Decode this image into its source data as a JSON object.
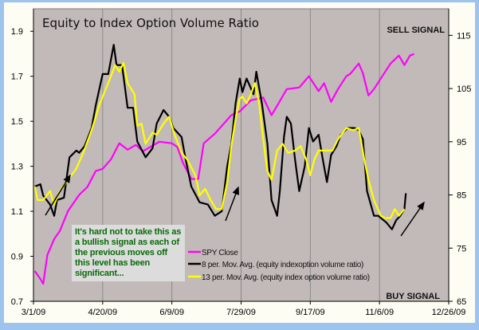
{
  "chart_data": {
    "type": "line",
    "title": "Equity to Index Option Volume Ratio",
    "x_unit": "days since 3/1/09",
    "x_tick_labels": [
      "3/1/09",
      "4/20/09",
      "6/9/09",
      "7/29/09",
      "9/17/09",
      "11/6/09",
      "12/26/09"
    ],
    "x_ticks": [
      0,
      50,
      100,
      150,
      200,
      250,
      300
    ],
    "xlim": [
      0,
      300
    ],
    "y_left": {
      "ylim": [
        0.7,
        2.0
      ],
      "ticks": [
        0.7,
        0.9,
        1.1,
        1.3,
        1.5,
        1.7,
        1.9
      ],
      "tick_labels": [
        "0.7",
        "0.9",
        "1.1",
        "1.3",
        "1.5",
        "1.7",
        "1.9"
      ]
    },
    "y_right": {
      "ylim": [
        65,
        120
      ],
      "ticks": [
        65,
        75,
        85,
        95,
        105,
        115
      ],
      "tick_labels": [
        "65",
        "75",
        "85",
        "95",
        "105",
        "115"
      ]
    },
    "annotations": {
      "sell": "SELL SIGNAL",
      "buy": "BUY SIGNAL",
      "note": "It's hard not to take this as a bullish signal as each of the previous moves off this level has been significant..."
    },
    "legend_position": "bottom-center",
    "series": [
      {
        "name": "SPY Close",
        "axis": "right",
        "color": "#ff00ff",
        "x": [
          1,
          5,
          7,
          10,
          15,
          19,
          25,
          33,
          39,
          45,
          50,
          56,
          62,
          68,
          74,
          79,
          91,
          100,
          104,
          108,
          114,
          119,
          123,
          131,
          143,
          149,
          157,
          166,
          172,
          177,
          183,
          192,
          199,
          206,
          210,
          215,
          220,
          226,
          229,
          235,
          238,
          242,
          246,
          252,
          258,
          264,
          268,
          272,
          275
        ],
        "y": [
          70.7,
          69.2,
          68.3,
          73.7,
          76.7,
          78.2,
          82.0,
          85.0,
          86.5,
          89.5,
          89.9,
          91.7,
          94.7,
          93.5,
          94.4,
          93.2,
          95.0,
          94.7,
          94.0,
          91.0,
          88.0,
          88.0,
          94.7,
          96.5,
          100.0,
          100.7,
          102.8,
          103.3,
          100.0,
          102.2,
          104.9,
          105.2,
          107.3,
          104.5,
          106.0,
          102.5,
          104.9,
          107.3,
          107.8,
          109.7,
          107.9,
          103.7,
          104.9,
          107.3,
          109.7,
          111.2,
          109.4,
          111.2,
          111.5
        ]
      },
      {
        "name": "8 per. Mov. Avg. (equity indexoption volume ratio)",
        "axis": "left",
        "color": "#000000",
        "x": [
          1,
          5,
          7,
          12,
          15,
          17,
          22,
          26,
          31,
          33,
          37,
          42,
          45,
          50,
          54,
          58,
          60,
          64,
          68,
          72,
          75,
          81,
          86,
          89,
          94,
          98,
          101,
          107,
          110,
          114,
          120,
          126,
          131,
          136,
          140,
          143,
          146,
          149,
          151,
          154,
          159,
          161,
          165,
          169,
          172,
          176,
          178,
          181,
          183,
          186,
          189,
          192,
          196,
          199,
          202,
          206,
          209,
          212,
          215,
          219,
          222,
          227,
          232,
          235,
          238,
          241,
          246,
          249,
          255,
          259,
          262,
          265,
          268,
          269
        ],
        "y": [
          1.21,
          1.22,
          1.17,
          1.13,
          1.08,
          1.15,
          1.16,
          1.34,
          1.37,
          1.36,
          1.39,
          1.47,
          1.57,
          1.71,
          1.71,
          1.84,
          1.75,
          1.75,
          1.56,
          1.56,
          1.41,
          1.34,
          1.38,
          1.49,
          1.55,
          1.52,
          1.47,
          1.43,
          1.33,
          1.21,
          1.14,
          1.13,
          1.08,
          1.1,
          1.3,
          1.4,
          1.58,
          1.69,
          1.63,
          1.69,
          1.62,
          1.72,
          1.58,
          1.4,
          1.15,
          1.08,
          1.19,
          1.43,
          1.52,
          1.49,
          1.33,
          1.19,
          1.3,
          1.47,
          1.41,
          1.44,
          1.33,
          1.23,
          1.35,
          1.39,
          1.44,
          1.47,
          1.47,
          1.46,
          1.42,
          1.19,
          1.08,
          1.08,
          1.05,
          1.02,
          1.06,
          1.08,
          1.11,
          1.18
        ]
      },
      {
        "name": "13 per. Mov. Avg. (equity index option volume ratio)",
        "axis": "left",
        "color": "#ffff00",
        "x": [
          1,
          3,
          7,
          12,
          15,
          19,
          25,
          31,
          36,
          42,
          48,
          54,
          59,
          62,
          65,
          68,
          73,
          75,
          78,
          81,
          86,
          89,
          94,
          98,
          102,
          107,
          111,
          117,
          120,
          124,
          128,
          132,
          136,
          140,
          143,
          146,
          149,
          151,
          154,
          157,
          160,
          163,
          166,
          169,
          172,
          176,
          180,
          184,
          189,
          193,
          197,
          200,
          203,
          206,
          211,
          216,
          220,
          226,
          231,
          235,
          239,
          242,
          246,
          251,
          254,
          258,
          261,
          264,
          268
        ],
        "y": [
          1.21,
          1.15,
          1.15,
          1.19,
          1.13,
          1.19,
          1.24,
          1.29,
          1.36,
          1.46,
          1.58,
          1.67,
          1.75,
          1.72,
          1.76,
          1.67,
          1.62,
          1.48,
          1.49,
          1.4,
          1.45,
          1.44,
          1.49,
          1.52,
          1.44,
          1.36,
          1.33,
          1.26,
          1.17,
          1.2,
          1.15,
          1.11,
          1.11,
          1.23,
          1.39,
          1.51,
          1.6,
          1.61,
          1.58,
          1.62,
          1.67,
          1.58,
          1.42,
          1.28,
          1.24,
          1.37,
          1.4,
          1.36,
          1.37,
          1.39,
          1.33,
          1.26,
          1.33,
          1.37,
          1.37,
          1.37,
          1.42,
          1.47,
          1.46,
          1.47,
          1.33,
          1.24,
          1.15,
          1.08,
          1.07,
          1.07,
          1.11,
          1.08,
          1.11
        ]
      }
    ]
  }
}
